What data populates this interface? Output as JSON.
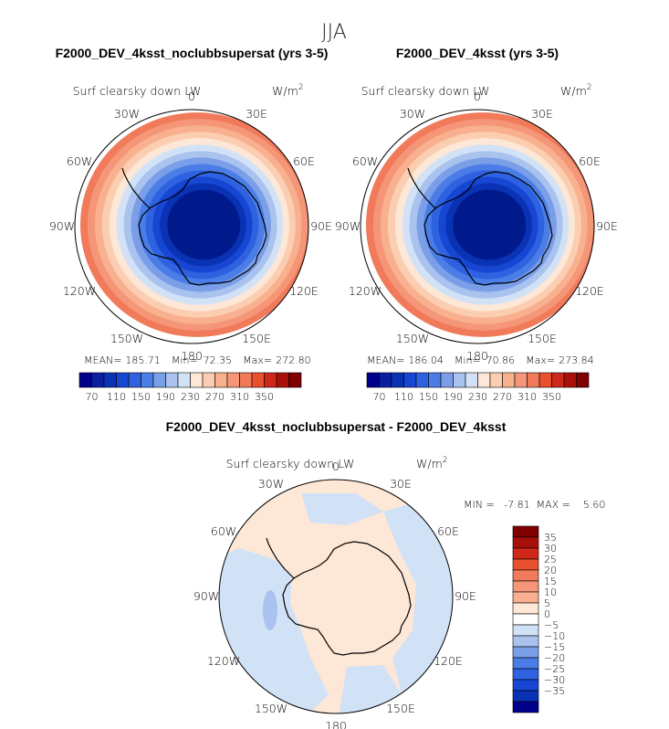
{
  "figure": {
    "title": "JJA",
    "diff_title": "F2000_DEV_4ksst_noclubbsupersat - F2000_DEV_4ksst"
  },
  "colors": {
    "coast": "#000000",
    "rings_panels": [
      "#001a8c",
      "#0a32b4",
      "#1646d2",
      "#2e62e0",
      "#4a7ee6",
      "#7a9ee8",
      "#a9c2ee",
      "#d2e2f6",
      "#fde7d6",
      "#fbcdb1",
      "#f8b08e",
      "#f49677",
      "#f07a5a"
    ],
    "diff_positive": "#fde7d6",
    "diff_negative": "#d2e2f6",
    "diff_negative_strong": "#a9c2ee"
  },
  "panels": [
    {
      "title": "F2000_DEV_4ksst_noclubbsupersat (yrs 3-5)",
      "variable": "Surf clearsky down LW",
      "units": "W/m",
      "units_exp": "2",
      "stats": {
        "mean_label": "MEAN=",
        "mean": "185.71",
        "min_label": "Min=",
        "min": "72.35",
        "max_label": "Max=",
        "max": "272.80"
      }
    },
    {
      "title": "F2000_DEV_4ksst (yrs 3-5)",
      "variable": "Surf clearsky down LW",
      "units": "W/m",
      "units_exp": "2",
      "stats": {
        "mean_label": "MEAN=",
        "mean": "186.04",
        "min_label": "Min=",
        "min": "70.86",
        "max_label": "Max=",
        "max": "273.84"
      }
    },
    {
      "title": "",
      "variable": "Surf clearsky down LW",
      "units": "W/m",
      "units_exp": "2",
      "stats_text": "MIN =   -7.81  MAX =    5.60"
    }
  ],
  "lon_labels": [
    "0",
    "30E",
    "60E",
    "90E",
    "120E",
    "150E",
    "180",
    "150W",
    "120W",
    "90W",
    "60W",
    "30W"
  ],
  "colorbar_top": {
    "colors": [
      "#00008b",
      "#0a1fa0",
      "#0a32b4",
      "#1646d2",
      "#2e62e0",
      "#4a7ee6",
      "#7a9ee8",
      "#a9c2ee",
      "#d2e2f6",
      "#fde7d6",
      "#fbcdb1",
      "#f8b08e",
      "#f49677",
      "#f07a5a",
      "#e8502e",
      "#d02818",
      "#a8100c",
      "#800000"
    ],
    "tick_labels": [
      "70",
      "110",
      "150",
      "190",
      "230",
      "270",
      "310",
      "350"
    ]
  },
  "colorbar_diff": {
    "colors": [
      "#800000",
      "#a8100c",
      "#d02818",
      "#e8502e",
      "#f07a5a",
      "#f49677",
      "#f8b08e",
      "#fde7d6",
      "#ffffff",
      "#d2e2f6",
      "#a9c2ee",
      "#7a9ee8",
      "#4a7ee6",
      "#2e62e0",
      "#1646d2",
      "#0a32b4",
      "#00008b"
    ],
    "tick_labels": [
      "35",
      "30",
      "25",
      "20",
      "15",
      "10",
      "5",
      "0",
      "−5",
      "−10",
      "−15",
      "−20",
      "−25",
      "−30",
      "−35"
    ]
  }
}
